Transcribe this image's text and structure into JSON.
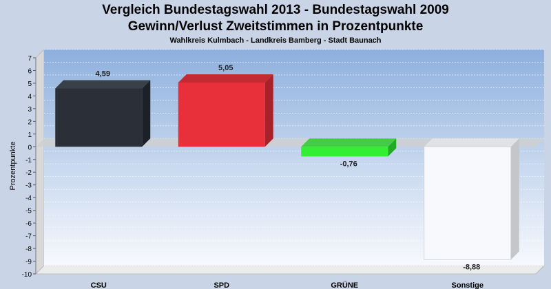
{
  "chart_data": {
    "type": "bar",
    "title": "Vergleich Bundestagswahl 2013 - Bundestagswahl 2009",
    "subtitle": "Gewinn/Verlust Zweitstimmen in Prozentpunkte",
    "caption": "Wahlkreis Kulmbach - Landkreis Bamberg - Stadt Baunach",
    "ylabel": "Prozentpunkte",
    "xlabel": "",
    "ylim": [
      -10,
      7
    ],
    "yticks": [
      7,
      6,
      5,
      4,
      3,
      2,
      1,
      0,
      -1,
      -2,
      -3,
      -4,
      -5,
      -6,
      -7,
      -8,
      -9,
      -10
    ],
    "grid": true,
    "categories": [
      "CSU",
      "SPD",
      "GRÜNE",
      "Sonstige"
    ],
    "values": [
      4.59,
      5.05,
      -0.76,
      -8.88
    ],
    "value_labels": [
      "4,59",
      "5,05",
      "-0,76",
      "-8,88"
    ],
    "colors": [
      "#2a2f38",
      "#e8303a",
      "#33ee33",
      "#f8f9fc"
    ],
    "side_colors": [
      "#1c2028",
      "#a8222a",
      "#22aa22",
      "#c4c6c8"
    ],
    "top_colors": [
      "#3a404a",
      "#c42a32",
      "#44cc44",
      "#e0e2e6"
    ]
  }
}
